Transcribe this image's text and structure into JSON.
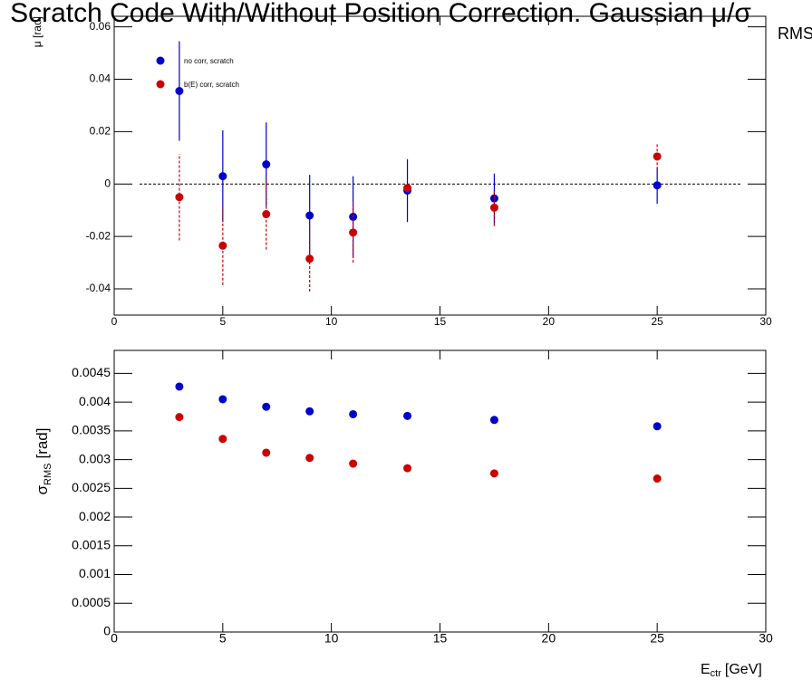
{
  "title": "Scratch Code With/Without Position Correction. Gaussian μ/σ",
  "title_suffix": "RMS",
  "chart_data": [
    {
      "type": "scatter",
      "y_label": "μ [rad]",
      "x": [
        3,
        5,
        7,
        9,
        11,
        13.5,
        17.5,
        25
      ],
      "series": [
        {
          "name": "no corr, scratch",
          "color": "#0000cc",
          "values": [
            0.0355,
            0.003,
            0.0075,
            -0.012,
            -0.0125,
            -0.0025,
            -0.0055,
            -0.0005
          ],
          "errors": [
            0.019,
            0.0175,
            0.016,
            0.0155,
            0.0155,
            0.012,
            0.0095,
            0.007
          ],
          "error_style": "solid"
        },
        {
          "name": "b(E) corr, scratch",
          "color": "#cc0000",
          "values": [
            -0.005,
            -0.0235,
            -0.0115,
            -0.0285,
            -0.0185,
            -0.0015,
            -0.009,
            0.0105
          ],
          "errors": [
            0.0165,
            0.015,
            0.0135,
            0.0125,
            0.0115,
            0.0015,
            0.007,
            0.005
          ],
          "error_style": "dashed"
        }
      ],
      "xlim": [
        0,
        30
      ],
      "xticks": [
        0,
        5,
        10,
        15,
        20,
        25,
        30
      ],
      "ylim": [
        -0.05,
        0.064
      ],
      "yticks": [
        -0.04,
        -0.02,
        0,
        0.02,
        0.04,
        0.06
      ],
      "reference_line": 0
    },
    {
      "type": "scatter",
      "y_label": "σ",
      "y_label_sub": "RMS",
      "y_label_unit": "[rad]",
      "x_label": "E",
      "x_label_sub": "ctr",
      "x_label_unit": "[GeV]",
      "x": [
        3,
        5,
        7,
        9,
        11,
        13.5,
        17.5,
        25
      ],
      "series": [
        {
          "name": "no corr, scratch",
          "color": "#0000cc",
          "values": [
            0.00427,
            0.00405,
            0.00392,
            0.00384,
            0.00379,
            0.00376,
            0.00369,
            0.00358
          ]
        },
        {
          "name": "b(E) corr, scratch",
          "color": "#cc0000",
          "values": [
            0.00374,
            0.00336,
            0.00312,
            0.00303,
            0.00293,
            0.00285,
            0.00276,
            0.00267
          ]
        }
      ],
      "xlim": [
        0,
        30
      ],
      "xticks": [
        0,
        5,
        10,
        15,
        20,
        25,
        30
      ],
      "ylim": [
        0,
        0.0049
      ],
      "yticks": [
        0,
        0.0005,
        0.001,
        0.0015,
        0.002,
        0.0025,
        0.003,
        0.0035,
        0.004,
        0.0045
      ]
    }
  ]
}
